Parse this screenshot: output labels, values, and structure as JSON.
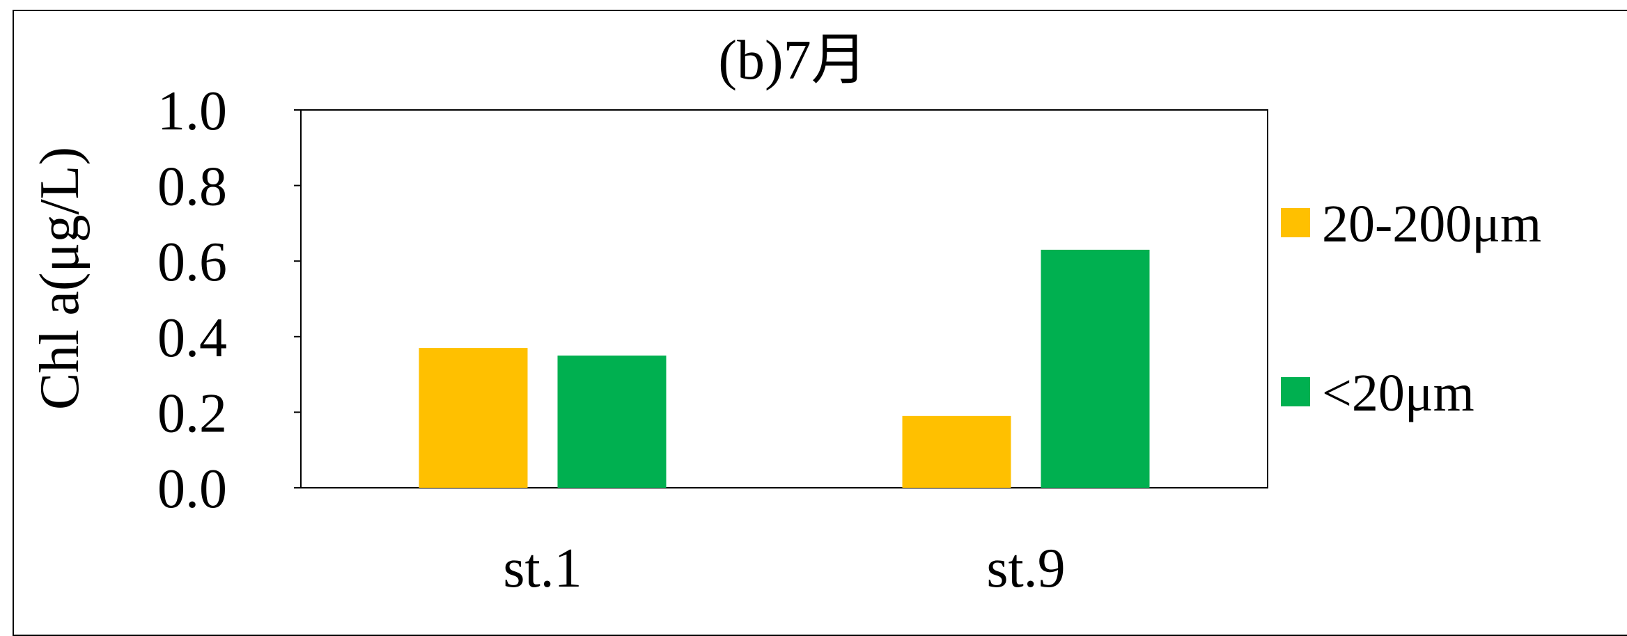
{
  "chart_data": {
    "type": "bar",
    "title": "(b)7月",
    "ylabel": "Chl a(μg/L)",
    "xlabel": "",
    "categories": [
      "st.1",
      "st.9"
    ],
    "series": [
      {
        "name": "20-200μm",
        "values": [
          0.37,
          0.19
        ],
        "color": "#FFC000"
      },
      {
        "name": "<20μm",
        "values": [
          0.35,
          0.63
        ],
        "color": "#00B050"
      }
    ],
    "ylim": [
      0.0,
      1.0
    ],
    "yticks": [
      "0.0",
      "0.2",
      "0.4",
      "0.6",
      "0.8",
      "1.0"
    ],
    "grid": false,
    "legend_position": "right"
  }
}
